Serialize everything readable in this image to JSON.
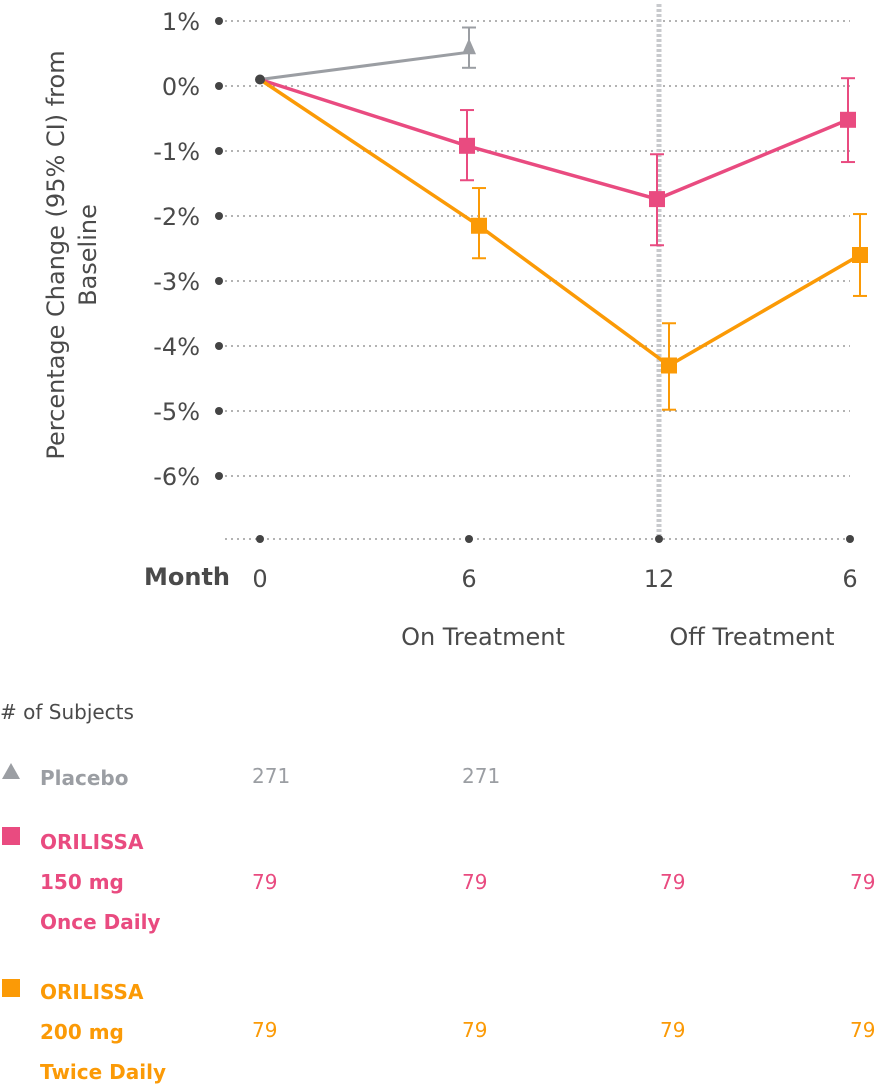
{
  "chart_data": {
    "type": "line",
    "ylabel": "Percentage Change (95% CI) from Baseline",
    "xlabel": "Month",
    "x_ticks": [
      "0",
      "6",
      "12",
      "6"
    ],
    "y_ticks": [
      "1%",
      "0%",
      "-1%",
      "-2%",
      "-3%",
      "-4%",
      "-5%",
      "-6%"
    ],
    "ylim": [
      -7,
      1
    ],
    "grid": true,
    "period_labels": [
      "On Treatment",
      "Off Treatment"
    ],
    "series": [
      {
        "name": "Placebo",
        "color": "#9b9ea3",
        "marker": "triangle",
        "points": [
          {
            "x": 0,
            "y": 0.1
          },
          {
            "x": 1,
            "y": 0.52,
            "ci": [
              0.28,
              0.9
            ]
          }
        ]
      },
      {
        "name": "ORILISSA 150 mg Once Daily",
        "color": "#e94b80",
        "marker": "square",
        "points": [
          {
            "x": 0,
            "y": 0.1
          },
          {
            "x": 1,
            "y": -0.92,
            "ci": [
              -1.45,
              -0.37
            ]
          },
          {
            "x": 2,
            "y": -1.74,
            "ci": [
              -2.45,
              -1.05
            ]
          },
          {
            "x": 3,
            "y": -0.52,
            "ci": [
              -1.17,
              0.12
            ]
          }
        ]
      },
      {
        "name": "ORILISSA 200 mg Twice Daily",
        "color": "#fb9a06",
        "marker": "square",
        "points": [
          {
            "x": 0,
            "y": 0.1
          },
          {
            "x": 1,
            "y": -2.15,
            "ci": [
              -2.65,
              -1.57
            ]
          },
          {
            "x": 2,
            "y": -4.3,
            "ci": [
              -4.98,
              -3.65
            ]
          },
          {
            "x": 3,
            "y": -2.6,
            "ci": [
              -3.23,
              -1.97
            ]
          }
        ]
      }
    ]
  },
  "subjects": {
    "title": "# of Subjects",
    "rows": [
      {
        "label": [
          "Placebo"
        ],
        "color": "#9b9ea3",
        "counts": [
          "271",
          "271"
        ]
      },
      {
        "label": [
          "ORILISSA",
          "150 mg",
          "Once Daily"
        ],
        "color": "#e94b80",
        "counts": [
          "79",
          "79",
          "79",
          "79"
        ]
      },
      {
        "label": [
          "ORILISSA",
          "200 mg",
          "Twice Daily"
        ],
        "color": "#fb9a06",
        "counts": [
          "79",
          "79",
          "79",
          "79"
        ]
      }
    ]
  }
}
